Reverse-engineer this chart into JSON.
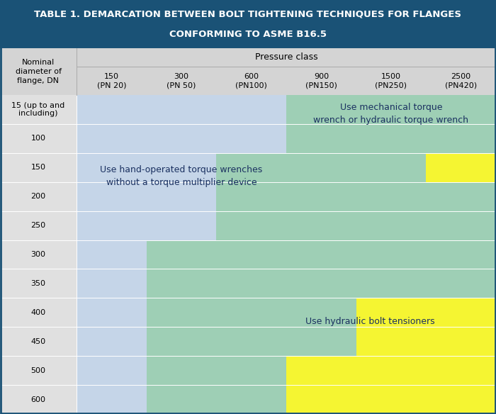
{
  "title_line1": "TABLE 1. DEMARCATION BETWEEN BOLT TIGHTENING TECHNIQUES FOR FLANGES",
  "title_line2": "CONFORMING TO ASME B16.5",
  "title_bg": "#1a5276",
  "title_color": "#ffffff",
  "header_bg": "#d4d4d4",
  "col_header_main": "Pressure class",
  "col_header_sub_top": [
    "150",
    "300",
    "600",
    "900",
    "1500",
    "2500"
  ],
  "col_header_sub_bot": [
    "(PN 20)",
    "(PN 50)",
    "(PN100)",
    "(PN150)",
    "(PN250)",
    "(PN420)"
  ],
  "row_label_header": "Nominal\ndiameter of\nflange, DN",
  "row_labels": [
    "15 (up to and\nincluding)",
    "100",
    "150",
    "200",
    "250",
    "300",
    "350",
    "400",
    "450",
    "500",
    "600"
  ],
  "color_blue": "#c5d5e8",
  "color_green": "#9ecfb5",
  "color_yellow": "#f5f532",
  "color_gray": "#e0e0e0",
  "label_blue": "Use hand-operated torque wrenches\nwithout a torque multiplier device",
  "label_green_top": "Use mechanical torque\nwrench or hydraulic torque wrench",
  "label_yellow": "Use hydraulic bolt tensioners",
  "label_color": "#1a3060",
  "outer_border": "#1a5276",
  "n_rows": 11,
  "n_cols": 6,
  "blue_region": [
    [
      1,
      1,
      1,
      0,
      0,
      0
    ],
    [
      1,
      1,
      1,
      0,
      0,
      0
    ],
    [
      1,
      1,
      1,
      0,
      0,
      0
    ],
    [
      1,
      1,
      1,
      0,
      0,
      0
    ],
    [
      1,
      1,
      1,
      0,
      0,
      0
    ],
    [
      1,
      1,
      0,
      0,
      0,
      0
    ],
    [
      1,
      1,
      0,
      0,
      0,
      0
    ],
    [
      1,
      1,
      0,
      0,
      0,
      0
    ],
    [
      1,
      0,
      0,
      0,
      0,
      0
    ],
    [
      1,
      0,
      0,
      0,
      0,
      0
    ],
    [
      1,
      0,
      0,
      0,
      0,
      0
    ]
  ],
  "green_region": [
    [
      0,
      0,
      0,
      1,
      1,
      1
    ],
    [
      0,
      0,
      0,
      1,
      1,
      1
    ],
    [
      0,
      0,
      1,
      1,
      1,
      1
    ],
    [
      0,
      0,
      1,
      1,
      1,
      1
    ],
    [
      0,
      0,
      1,
      1,
      1,
      1
    ],
    [
      0,
      1,
      1,
      1,
      1,
      1
    ],
    [
      0,
      1,
      1,
      1,
      1,
      1
    ],
    [
      0,
      1,
      1,
      1,
      0,
      0
    ],
    [
      0,
      1,
      1,
      1,
      0,
      0
    ],
    [
      0,
      1,
      1,
      0,
      0,
      0
    ],
    [
      0,
      1,
      1,
      0,
      0,
      0
    ]
  ],
  "yellow_region": [
    [
      0,
      0,
      0,
      0,
      0,
      0
    ],
    [
      0,
      0,
      0,
      0,
      0,
      0
    ],
    [
      0,
      0,
      0,
      0,
      0,
      1
    ],
    [
      0,
      0,
      0,
      0,
      0,
      0
    ],
    [
      0,
      0,
      0,
      0,
      0,
      0
    ],
    [
      0,
      0,
      0,
      0,
      0,
      0
    ],
    [
      0,
      0,
      0,
      0,
      0,
      0
    ],
    [
      0,
      0,
      0,
      0,
      1,
      1
    ],
    [
      0,
      0,
      0,
      0,
      1,
      1
    ],
    [
      0,
      0,
      0,
      1,
      1,
      1
    ],
    [
      0,
      0,
      0,
      1,
      1,
      1
    ]
  ]
}
